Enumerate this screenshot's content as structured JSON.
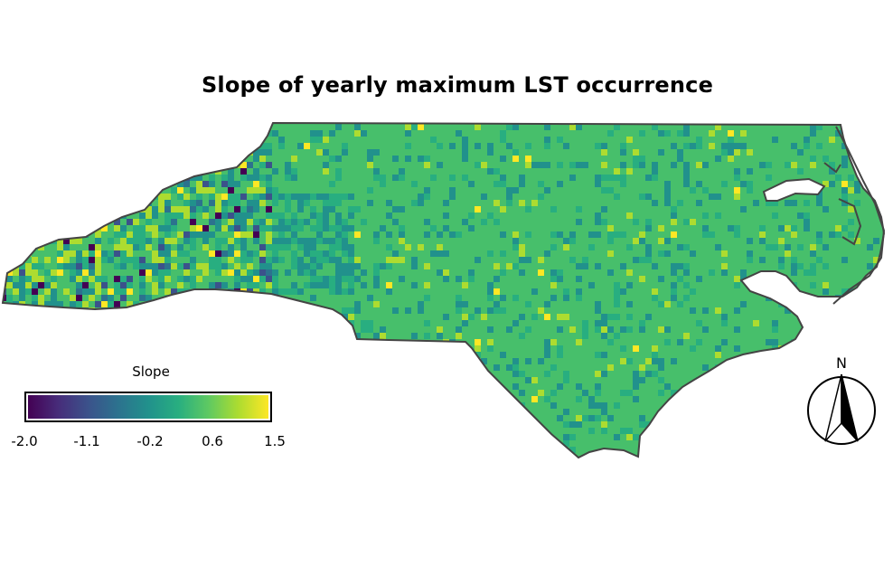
{
  "title": "Slope of yearly maximum LST occurrence",
  "legend": {
    "title": "Slope",
    "ticks": [
      "-2.0",
      "-1.1",
      "-0.2",
      "0.6",
      "1.5"
    ],
    "range": [
      -2.0,
      1.5
    ],
    "colormap": [
      "#440154",
      "#472c7a",
      "#3b528b",
      "#2c728e",
      "#21918c",
      "#28ae80",
      "#5ec962",
      "#addc30",
      "#fde725"
    ]
  },
  "north_arrow": {
    "label": "N"
  },
  "colors": {
    "dominant": "#47bf6b",
    "outline": "#444444"
  }
}
